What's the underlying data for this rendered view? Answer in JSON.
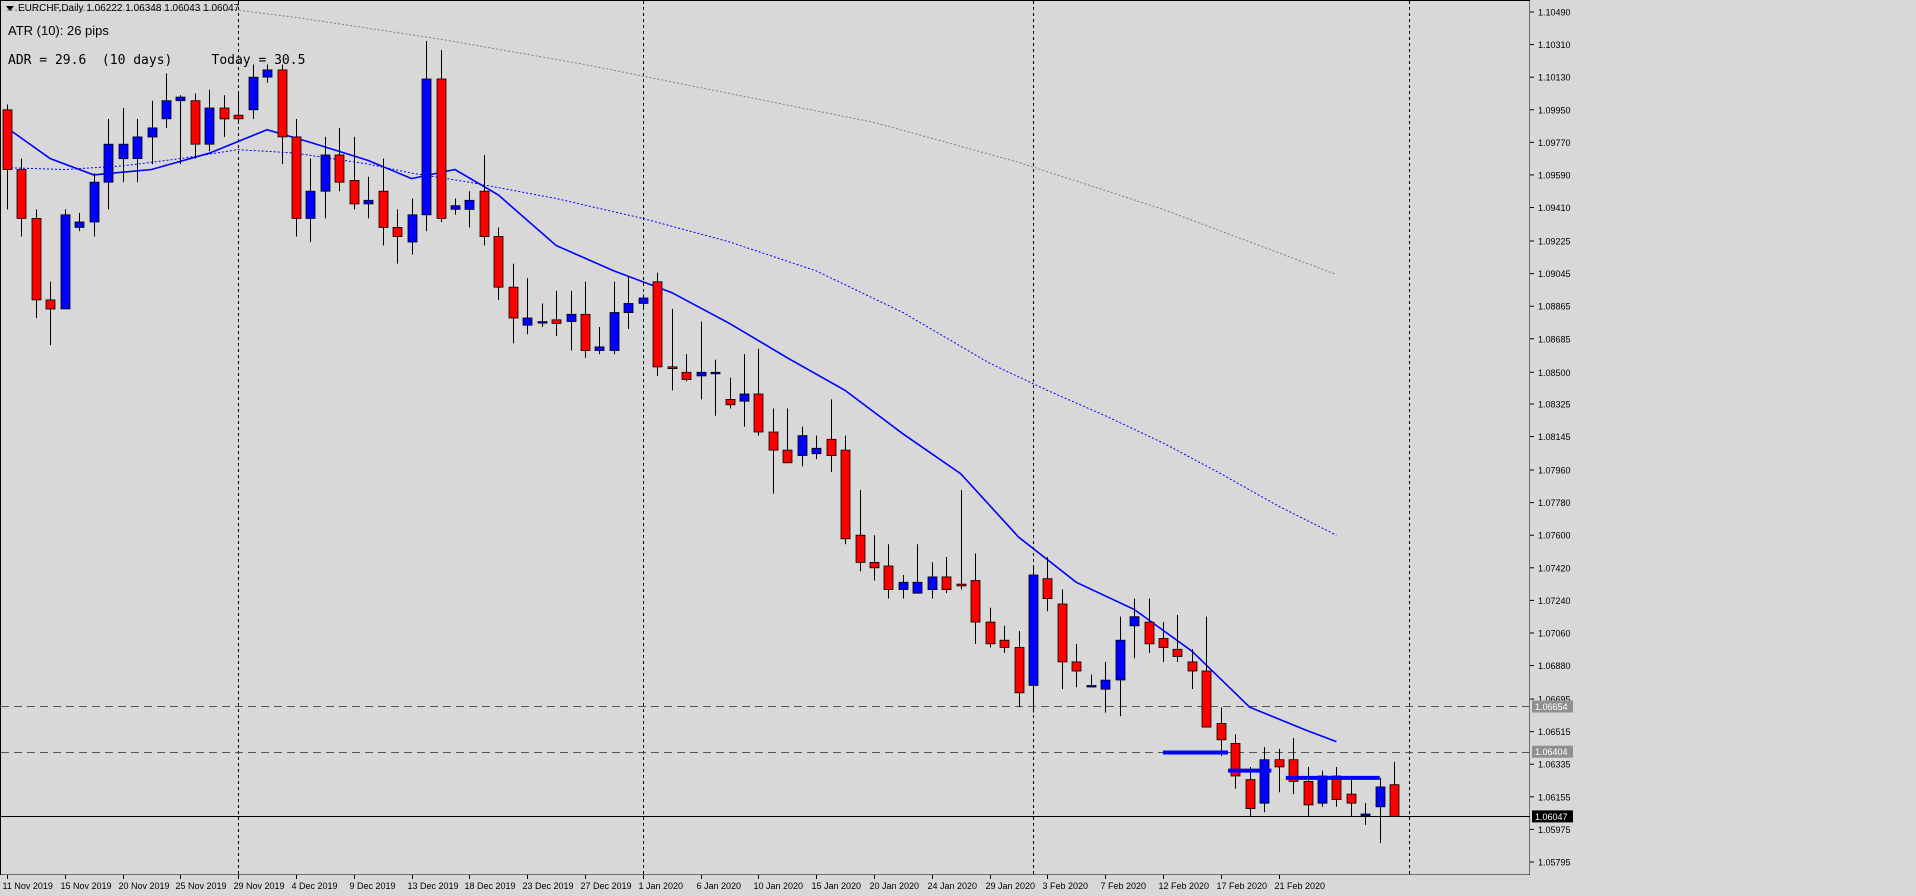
{
  "header": {
    "ohlc_line": "EURCHF,Daily  1.06222 1.06348 1.06043 1.06047",
    "atr_label": "ATR (10): 26 pips",
    "adr_label": "ADR = 29.6  (10 days)     Today = 30.5"
  },
  "colors": {
    "background": "#d8d8d8",
    "bull": "#0000ff",
    "bear": "#ff0000",
    "wick": "#000000",
    "ma_fast": "#0000ff",
    "ma_mid": "#0000ff",
    "ma_slow": "#808080",
    "level_box": "#0000ff"
  },
  "chart_data": {
    "type": "candlestick",
    "symbol": "EURCHF",
    "timeframe": "Daily",
    "ylim": [
      1.05795,
      1.1049
    ],
    "y_ticks": [
      "1.10490",
      "1.10310",
      "1.10130",
      "1.09950",
      "1.09770",
      "1.09590",
      "1.09410",
      "1.09225",
      "1.09045",
      "1.08865",
      "1.08685",
      "1.08500",
      "1.08325",
      "1.08145",
      "1.07960",
      "1.07780",
      "1.07600",
      "1.07420",
      "1.07240",
      "1.07060",
      "1.06880",
      "1.06695",
      "1.06515",
      "1.06335",
      "1.06155",
      "1.05975",
      "1.05795"
    ],
    "x_labels": [
      {
        "i": 0,
        "label": "11 Nov 2019"
      },
      {
        "i": 4,
        "label": "15 Nov 2019"
      },
      {
        "i": 8,
        "label": "20 Nov 2019"
      },
      {
        "i": 12,
        "label": "25 Nov 2019"
      },
      {
        "i": 16,
        "label": "29 Nov 2019"
      },
      {
        "i": 20,
        "label": "4 Dec 2019"
      },
      {
        "i": 24,
        "label": "9 Dec 2019"
      },
      {
        "i": 28,
        "label": "13 Dec 2019"
      },
      {
        "i": 32,
        "label": "18 Dec 2019"
      },
      {
        "i": 36,
        "label": "23 Dec 2019"
      },
      {
        "i": 40,
        "label": "27 Dec 2019"
      },
      {
        "i": 44,
        "label": "1 Jan 2020"
      },
      {
        "i": 48,
        "label": "6 Jan 2020"
      },
      {
        "i": 52,
        "label": "10 Jan 2020"
      },
      {
        "i": 56,
        "label": "15 Jan 2020"
      },
      {
        "i": 60,
        "label": "20 Jan 2020"
      },
      {
        "i": 64,
        "label": "24 Jan 2020"
      },
      {
        "i": 68,
        "label": "29 Jan 2020"
      },
      {
        "i": 72,
        "label": "3 Feb 2020"
      },
      {
        "i": 76,
        "label": "7 Feb 2020"
      },
      {
        "i": 80,
        "label": "12 Feb 2020"
      },
      {
        "i": 84,
        "label": "17 Feb 2020"
      },
      {
        "i": 88,
        "label": "21 Feb 2020"
      }
    ],
    "candles": [
      {
        "o": 1.0995,
        "h": 1.0998,
        "l": 1.094,
        "c": 1.0962
      },
      {
        "o": 1.0962,
        "h": 1.0968,
        "l": 1.0925,
        "c": 1.0935
      },
      {
        "o": 1.0935,
        "h": 1.094,
        "l": 1.088,
        "c": 1.089
      },
      {
        "o": 1.089,
        "h": 1.09,
        "l": 1.0865,
        "c": 1.0885
      },
      {
        "o": 1.0885,
        "h": 1.094,
        "l": 1.0885,
        "c": 1.0937
      },
      {
        "o": 1.093,
        "h": 1.0938,
        "l": 1.0928,
        "c": 1.0933
      },
      {
        "o": 1.0933,
        "h": 1.096,
        "l": 1.0925,
        "c": 1.0955
      },
      {
        "o": 1.0955,
        "h": 1.099,
        "l": 1.094,
        "c": 1.0976
      },
      {
        "o": 1.0968,
        "h": 1.0996,
        "l": 1.0955,
        "c": 1.0976
      },
      {
        "o": 1.0968,
        "h": 1.099,
        "l": 1.0955,
        "c": 1.098
      },
      {
        "o": 1.098,
        "h": 1.1,
        "l": 1.0965,
        "c": 1.0985
      },
      {
        "o": 1.099,
        "h": 1.1015,
        "l": 1.0985,
        "c": 1.1
      },
      {
        "o": 1.1,
        "h": 1.1003,
        "l": 1.0965,
        "c": 1.1002
      },
      {
        "o": 1.1,
        "h": 1.1004,
        "l": 1.0968,
        "c": 1.0976
      },
      {
        "o": 1.0976,
        "h": 1.1006,
        "l": 1.0972,
        "c": 1.0996
      },
      {
        "o": 1.0996,
        "h": 1.1003,
        "l": 1.098,
        "c": 1.099
      },
      {
        "o": 1.0992,
        "h": 1.1005,
        "l": 1.0988,
        "c": 1.099
      },
      {
        "o": 1.0995,
        "h": 1.102,
        "l": 1.099,
        "c": 1.1013
      },
      {
        "o": 1.1013,
        "h": 1.102,
        "l": 1.101,
        "c": 1.1017
      },
      {
        "o": 1.1017,
        "h": 1.102,
        "l": 1.0965,
        "c": 1.098
      },
      {
        "o": 1.098,
        "h": 1.099,
        "l": 1.0925,
        "c": 1.0935
      },
      {
        "o": 1.0935,
        "h": 1.0968,
        "l": 1.0922,
        "c": 1.095
      },
      {
        "o": 1.095,
        "h": 1.098,
        "l": 1.0935,
        "c": 1.097
      },
      {
        "o": 1.097,
        "h": 1.0985,
        "l": 1.095,
        "c": 1.0955
      },
      {
        "o": 1.0956,
        "h": 1.098,
        "l": 1.094,
        "c": 1.0943
      },
      {
        "o": 1.0943,
        "h": 1.0958,
        "l": 1.0935,
        "c": 1.0945
      },
      {
        "o": 1.095,
        "h": 1.0968,
        "l": 1.092,
        "c": 1.093
      },
      {
        "o": 1.093,
        "h": 1.094,
        "l": 1.091,
        "c": 1.0925
      },
      {
        "o": 1.0922,
        "h": 1.0946,
        "l": 1.0915,
        "c": 1.0937
      },
      {
        "o": 1.0937,
        "h": 1.1033,
        "l": 1.0928,
        "c": 1.1012
      },
      {
        "o": 1.1012,
        "h": 1.1028,
        "l": 1.0933,
        "c": 1.0935
      },
      {
        "o": 1.094,
        "h": 1.0946,
        "l": 1.0937,
        "c": 1.0942
      },
      {
        "o": 1.094,
        "h": 1.095,
        "l": 1.093,
        "c": 1.0945
      },
      {
        "o": 1.095,
        "h": 1.097,
        "l": 1.092,
        "c": 1.0925
      },
      {
        "o": 1.0925,
        "h": 1.093,
        "l": 1.089,
        "c": 1.0897
      },
      {
        "o": 1.0897,
        "h": 1.091,
        "l": 1.0866,
        "c": 1.088
      },
      {
        "o": 1.0876,
        "h": 1.0902,
        "l": 1.0871,
        "c": 1.088
      },
      {
        "o": 1.0878,
        "h": 1.0888,
        "l": 1.0875,
        "c": 1.0878
      },
      {
        "o": 1.0879,
        "h": 1.0895,
        "l": 1.087,
        "c": 1.0877
      },
      {
        "o": 1.0878,
        "h": 1.0895,
        "l": 1.0862,
        "c": 1.0882
      },
      {
        "o": 1.0882,
        "h": 1.09,
        "l": 1.0858,
        "c": 1.0862
      },
      {
        "o": 1.0862,
        "h": 1.0875,
        "l": 1.086,
        "c": 1.0864
      },
      {
        "o": 1.0862,
        "h": 1.09,
        "l": 1.086,
        "c": 1.0883
      },
      {
        "o": 1.0883,
        "h": 1.0903,
        "l": 1.0874,
        "c": 1.0888
      },
      {
        "o": 1.0888,
        "h": 1.0893,
        "l": 1.0885,
        "c": 1.0891
      },
      {
        "o": 1.09,
        "h": 1.0905,
        "l": 1.0848,
        "c": 1.0853
      },
      {
        "o": 1.0853,
        "h": 1.0885,
        "l": 1.084,
        "c": 1.0852
      },
      {
        "o": 1.085,
        "h": 1.086,
        "l": 1.0845,
        "c": 1.0846
      },
      {
        "o": 1.0848,
        "h": 1.0878,
        "l": 1.0835,
        "c": 1.085
      },
      {
        "o": 1.085,
        "h": 1.0857,
        "l": 1.0826,
        "c": 1.085
      },
      {
        "o": 1.0835,
        "h": 1.0847,
        "l": 1.083,
        "c": 1.0832
      },
      {
        "o": 1.0834,
        "h": 1.086,
        "l": 1.082,
        "c": 1.0838
      },
      {
        "o": 1.0838,
        "h": 1.0863,
        "l": 1.0815,
        "c": 1.0817
      },
      {
        "o": 1.0817,
        "h": 1.083,
        "l": 1.0783,
        "c": 1.0807
      },
      {
        "o": 1.0807,
        "h": 1.083,
        "l": 1.08,
        "c": 1.08
      },
      {
        "o": 1.0804,
        "h": 1.082,
        "l": 1.0798,
        "c": 1.0815
      },
      {
        "o": 1.0805,
        "h": 1.0815,
        "l": 1.0802,
        "c": 1.0808
      },
      {
        "o": 1.0813,
        "h": 1.0835,
        "l": 1.0795,
        "c": 1.0804
      },
      {
        "o": 1.0807,
        "h": 1.0815,
        "l": 1.0755,
        "c": 1.0758
      },
      {
        "o": 1.076,
        "h": 1.0785,
        "l": 1.074,
        "c": 1.0745
      },
      {
        "o": 1.0745,
        "h": 1.076,
        "l": 1.0735,
        "c": 1.0742
      },
      {
        "o": 1.0743,
        "h": 1.0755,
        "l": 1.0725,
        "c": 1.073
      },
      {
        "o": 1.073,
        "h": 1.0738,
        "l": 1.0725,
        "c": 1.0734
      },
      {
        "o": 1.0728,
        "h": 1.0755,
        "l": 1.0728,
        "c": 1.0734
      },
      {
        "o": 1.073,
        "h": 1.0745,
        "l": 1.0725,
        "c": 1.0737
      },
      {
        "o": 1.0737,
        "h": 1.0748,
        "l": 1.0728,
        "c": 1.073
      },
      {
        "o": 1.0733,
        "h": 1.0785,
        "l": 1.073,
        "c": 1.0732
      },
      {
        "o": 1.0735,
        "h": 1.075,
        "l": 1.07,
        "c": 1.0712
      },
      {
        "o": 1.0712,
        "h": 1.072,
        "l": 1.0698,
        "c": 1.07
      },
      {
        "o": 1.0702,
        "h": 1.071,
        "l": 1.0695,
        "c": 1.0698
      },
      {
        "o": 1.0698,
        "h": 1.0707,
        "l": 1.0665,
        "c": 1.0673
      },
      {
        "o": 1.0677,
        "h": 1.0742,
        "l": 1.0662,
        "c": 1.0738
      },
      {
        "o": 1.0736,
        "h": 1.0748,
        "l": 1.0718,
        "c": 1.0725
      },
      {
        "o": 1.0722,
        "h": 1.073,
        "l": 1.0675,
        "c": 1.069
      },
      {
        "o": 1.069,
        "h": 1.07,
        "l": 1.0676,
        "c": 1.0685
      },
      {
        "o": 1.0677,
        "h": 1.0683,
        "l": 1.0676,
        "c": 1.0677
      },
      {
        "o": 1.0675,
        "h": 1.069,
        "l": 1.0662,
        "c": 1.068
      },
      {
        "o": 1.068,
        "h": 1.0715,
        "l": 1.066,
        "c": 1.0702
      },
      {
        "o": 1.071,
        "h": 1.0725,
        "l": 1.0692,
        "c": 1.0715
      },
      {
        "o": 1.0712,
        "h": 1.0725,
        "l": 1.0695,
        "c": 1.07
      },
      {
        "o": 1.0703,
        "h": 1.0712,
        "l": 1.069,
        "c": 1.0698
      },
      {
        "o": 1.0697,
        "h": 1.0716,
        "l": 1.069,
        "c": 1.0693
      },
      {
        "o": 1.069,
        "h": 1.0697,
        "l": 1.0675,
        "c": 1.0685
      },
      {
        "o": 1.0685,
        "h": 1.0715,
        "l": 1.0658,
        "c": 1.0654
      },
      {
        "o": 1.0656,
        "h": 1.0665,
        "l": 1.0638,
        "c": 1.0647
      },
      {
        "o": 1.0645,
        "h": 1.065,
        "l": 1.062,
        "c": 1.0627
      },
      {
        "o": 1.0625,
        "h": 1.0632,
        "l": 1.0605,
        "c": 1.0609
      },
      {
        "o": 1.0612,
        "h": 1.0643,
        "l": 1.0607,
        "c": 1.0636
      },
      {
        "o": 1.0636,
        "h": 1.0642,
        "l": 1.0618,
        "c": 1.0632
      },
      {
        "o": 1.0636,
        "h": 1.0648,
        "l": 1.0617,
        "c": 1.0624
      },
      {
        "o": 1.0624,
        "h": 1.0632,
        "l": 1.0605,
        "c": 1.0611
      },
      {
        "o": 1.0612,
        "h": 1.063,
        "l": 1.061,
        "c": 1.0627
      },
      {
        "o": 1.0627,
        "h": 1.0632,
        "l": 1.061,
        "c": 1.0614
      },
      {
        "o": 1.0617,
        "h": 1.0626,
        "l": 1.0605,
        "c": 1.0612
      },
      {
        "o": 1.0605,
        "h": 1.0612,
        "l": 1.06,
        "c": 1.0606
      },
      {
        "o": 1.061,
        "h": 1.0626,
        "l": 1.059,
        "c": 1.0621
      },
      {
        "o": 1.06222,
        "h": 1.06348,
        "l": 1.06043,
        "c": 1.06047
      }
    ],
    "ma_fast": [
      [
        0,
        1.0985
      ],
      [
        3,
        1.0968
      ],
      [
        6,
        1.0959
      ],
      [
        10,
        1.0962
      ],
      [
        14,
        1.0971
      ],
      [
        18,
        1.0984
      ],
      [
        21,
        1.0977
      ],
      [
        25,
        1.0967
      ],
      [
        28,
        1.0957
      ],
      [
        31,
        1.0962
      ],
      [
        34,
        1.0948
      ],
      [
        38,
        1.092
      ],
      [
        42,
        1.0906
      ],
      [
        46,
        1.0894
      ],
      [
        50,
        1.0877
      ],
      [
        54,
        1.0858
      ],
      [
        58,
        1.084
      ],
      [
        62,
        1.0816
      ],
      [
        66,
        1.0794
      ],
      [
        70,
        1.0759
      ],
      [
        74,
        1.0734
      ],
      [
        78,
        1.0719
      ],
      [
        82,
        1.0696
      ],
      [
        86,
        1.0665
      ],
      [
        90,
        1.0652
      ],
      [
        92,
        1.0646
      ]
    ],
    "ma_mid": [
      [
        0,
        1.0963
      ],
      [
        4,
        1.0962
      ],
      [
        8,
        1.0964
      ],
      [
        12,
        1.0968
      ],
      [
        16,
        1.0973
      ],
      [
        20,
        1.0971
      ],
      [
        25,
        1.0965
      ],
      [
        28,
        1.096
      ],
      [
        32,
        1.0955
      ],
      [
        38,
        1.0946
      ],
      [
        44,
        1.0935
      ],
      [
        50,
        1.0922
      ],
      [
        56,
        1.0906
      ],
      [
        62,
        1.0883
      ],
      [
        68,
        1.0855
      ],
      [
        72,
        1.084
      ],
      [
        76,
        1.0826
      ],
      [
        80,
        1.0811
      ],
      [
        84,
        1.0794
      ],
      [
        88,
        1.0776
      ],
      [
        92,
        1.076
      ]
    ],
    "ma_slow": [
      [
        0,
        1.105
      ],
      [
        16,
        1.105
      ],
      [
        20,
        1.1046
      ],
      [
        30,
        1.1034
      ],
      [
        40,
        1.102
      ],
      [
        50,
        1.1004
      ],
      [
        60,
        1.0988
      ],
      [
        70,
        1.0966
      ],
      [
        80,
        1.094
      ],
      [
        88,
        1.0916
      ],
      [
        92,
        1.0904
      ]
    ],
    "hlines": [
      {
        "price": 1.06654,
        "label": "1.06654",
        "style": "dash"
      },
      {
        "price": 1.06404,
        "label": "1.06404",
        "style": "dash"
      },
      {
        "price": 1.06047,
        "label": "1.06047",
        "style": "solid"
      }
    ],
    "level_lines": [
      {
        "from": 80,
        "to": 84.5,
        "price": 1.064
      },
      {
        "from": 84.5,
        "to": 87.5,
        "price": 1.063
      },
      {
        "from": 88.5,
        "to": 95,
        "price": 1.0626
      }
    ],
    "period_separators": [
      16,
      44,
      71,
      97
    ]
  }
}
